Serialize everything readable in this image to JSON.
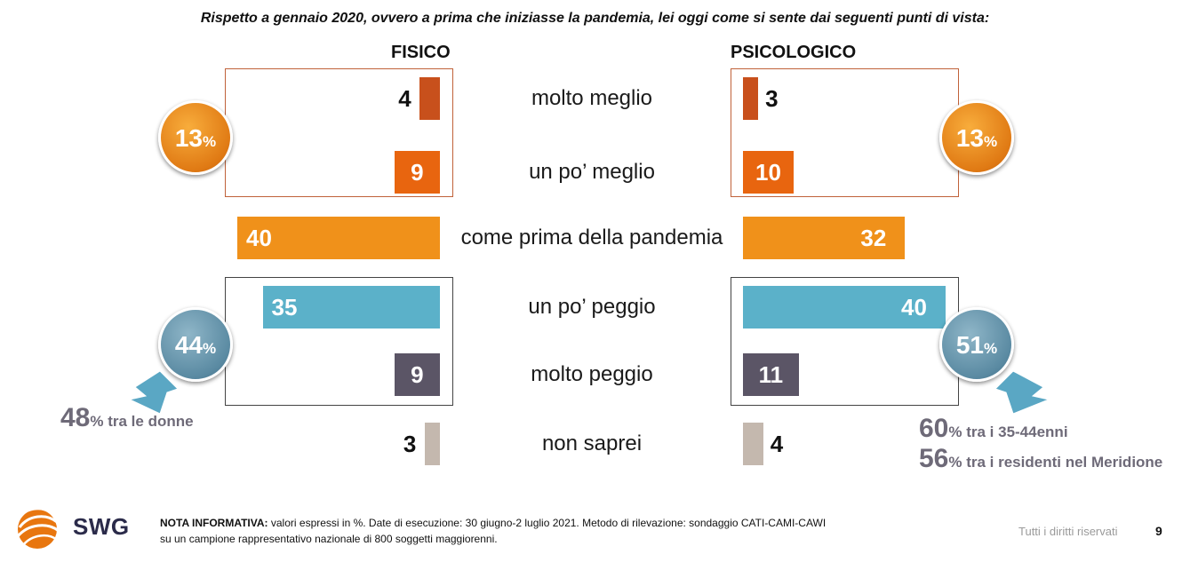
{
  "question": "Rispetto a gennaio 2020, ovvero a prima che iniziasse la pandemia, lei oggi come si sente dai seguenti punti di vista:",
  "headers": {
    "left": "FISICO",
    "right": "PSICOLOGICO"
  },
  "chart_data": {
    "type": "bar",
    "categories": [
      "molto meglio",
      "un po’ meglio",
      "come prima della pandemia",
      "un po’ peggio",
      "molto peggio",
      "non saprei"
    ],
    "series": [
      {
        "name": "FISICO",
        "values": [
          4,
          9,
          40,
          35,
          9,
          3
        ]
      },
      {
        "name": "PSICOLOGICO",
        "values": [
          3,
          10,
          32,
          40,
          11,
          4
        ]
      }
    ],
    "bar_colors": [
      "#c8501c",
      "#e8650f",
      "#f0911a",
      "#5bb1c9",
      "#5b5566",
      "#c4b8ae"
    ],
    "label_colors": [
      "#111111",
      "#ffffff",
      "#ffffff",
      "#ffffff",
      "#ffffff",
      "#111111"
    ],
    "label_inside": [
      false,
      true,
      true,
      true,
      true,
      false
    ]
  },
  "summary": {
    "left_better": {
      "num": "13",
      "pct": "%"
    },
    "right_better": {
      "num": "13",
      "pct": "%"
    },
    "left_worse": {
      "num": "44",
      "pct": "%"
    },
    "right_worse": {
      "num": "51",
      "pct": "%"
    }
  },
  "notes": {
    "left": {
      "big": "48",
      "rest": "% tra le donne"
    },
    "right_1": {
      "big": "60",
      "rest": "% tra i 35-44enni"
    },
    "right_2": {
      "big": "56",
      "rest": "% tra i residenti nel Meridione"
    }
  },
  "footer": {
    "label": "NOTA INFORMATIVA:",
    "text_line1": " valori espressi in %. Date di esecuzione: 30 giugno-2 luglio 2021. Metodo di rilevazione: sondaggio CATI-CAMI-CAWI",
    "text_line2": "su un campione rappresentativo nazionale di 800 soggetti maggiorenni.",
    "rights": "Tutti i diritti riservati",
    "page": "9"
  },
  "logo": {
    "text": "SWG"
  },
  "colors": {
    "orange_bubble": "#e8841a",
    "blue_bubble": "#5a8aa2",
    "note_text": "#6e6a78"
  }
}
